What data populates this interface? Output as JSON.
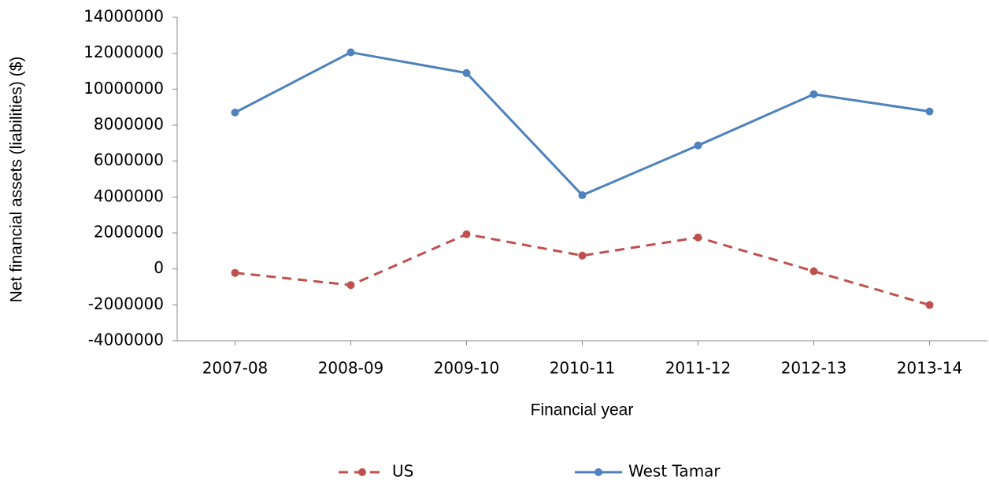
{
  "chart_data": {
    "type": "line",
    "categories": [
      "2007-08",
      "2008-09",
      "2009-10",
      "2010-11",
      "2011-12",
      "2012-13",
      "2013-14"
    ],
    "series": [
      {
        "name": "US",
        "color": "#c0504d",
        "dashed": true,
        "values": [
          -220000,
          -900000,
          1930000,
          740000,
          1750000,
          -130000,
          -2010000
        ]
      },
      {
        "name": "West Tamar",
        "color": "#4f81bd",
        "dashed": false,
        "values": [
          8700000,
          12050000,
          10900000,
          4100000,
          6870000,
          9720000,
          8760000
        ]
      }
    ],
    "x_label": "Financial year",
    "y_label": "Net financial assets (liabilities) ($)",
    "ylim": [
      -4000000,
      14000000
    ],
    "yticks": [
      -4000000,
      -2000000,
      0,
      2000000,
      4000000,
      6000000,
      8000000,
      10000000,
      12000000,
      14000000
    ],
    "grid": false,
    "legend": "bottom"
  }
}
